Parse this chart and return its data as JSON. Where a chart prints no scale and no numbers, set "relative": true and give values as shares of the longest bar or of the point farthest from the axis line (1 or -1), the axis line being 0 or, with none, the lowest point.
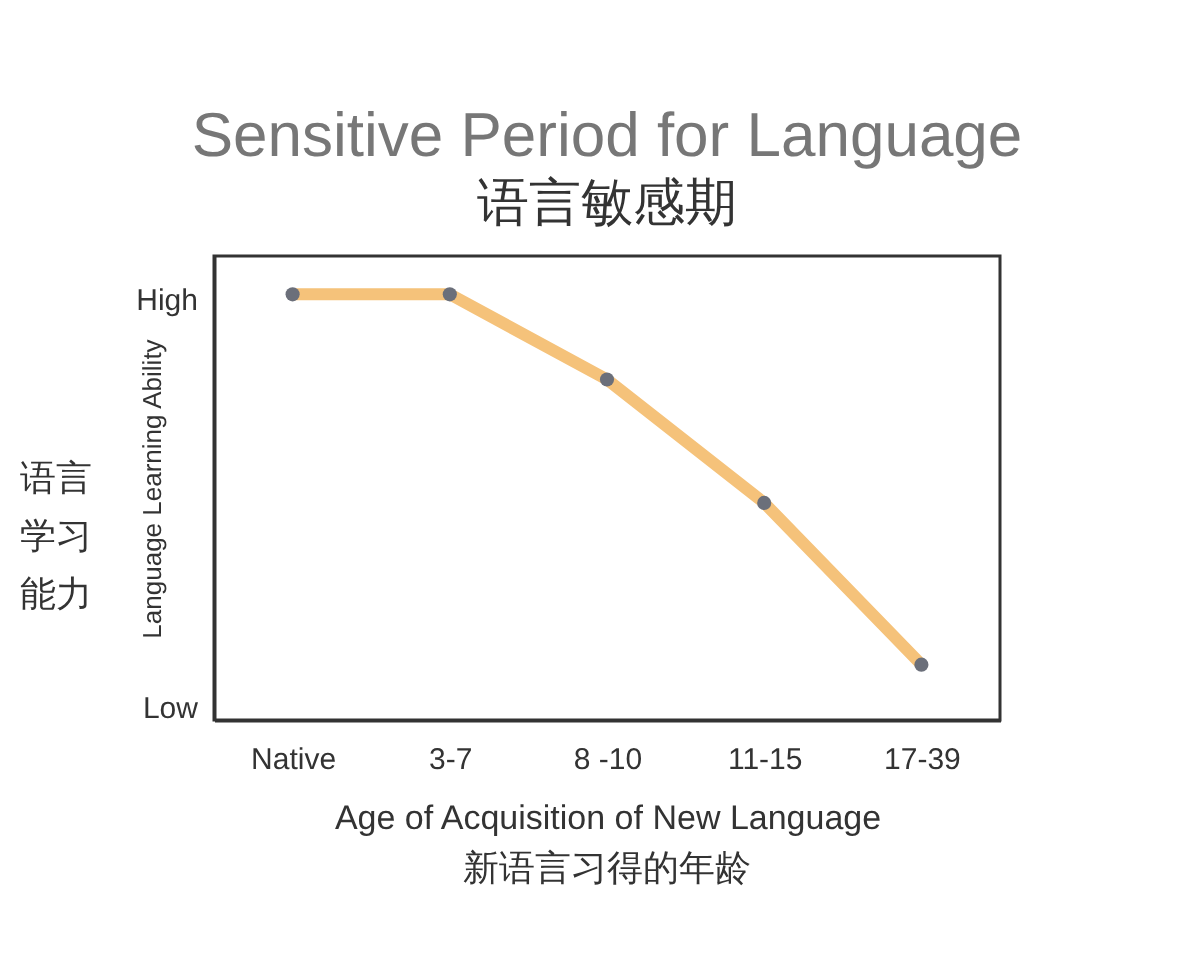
{
  "chart_data": {
    "type": "line",
    "title": "Sensitive Period for Language",
    "subtitle": "语言敏感期",
    "xlabel": "Age of Acquisition of New Language",
    "ylabel": "Language Learning Ability",
    "annotations": [
      "语言学习能力",
      "新语言习得的年龄",
      "High",
      "Low"
    ],
    "categories": [
      "Native",
      "3-7",
      "8 -10",
      "11-15",
      "17-39"
    ],
    "series": [
      {
        "color": "#f5c27a",
        "values": [
          1,
          1,
          0.8,
          0.51,
          0.13
        ]
      }
    ],
    "relative": true,
    "marker": "circle",
    "line_style": "solid",
    "grid": false
  }
}
